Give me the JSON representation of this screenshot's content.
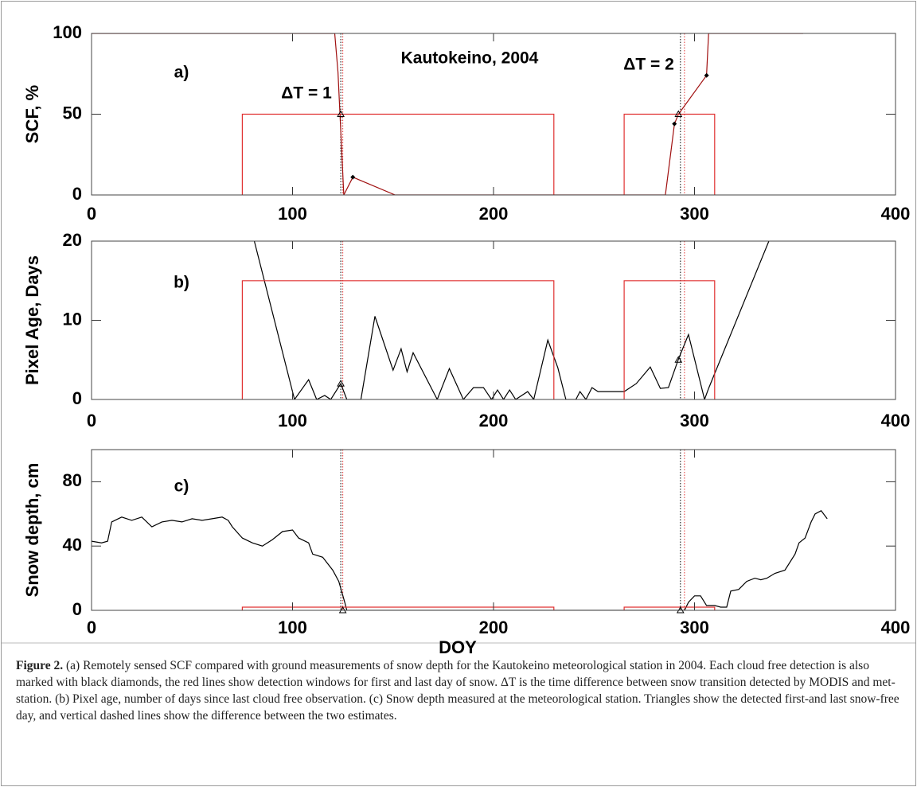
{
  "chart_data": [
    {
      "type": "line",
      "ylabel": "SCF, %",
      "xlim": [
        0,
        400
      ],
      "ylim": [
        0,
        100
      ],
      "xticks": [
        0,
        100,
        200,
        300,
        400
      ],
      "yticks": [
        0,
        50,
        100
      ],
      "annotations": [
        "a)",
        "Kautokeino, 2004",
        "ΔT = 1",
        "ΔT = 2"
      ],
      "series": [
        {
          "color": "#a01010",
          "x": [
            0,
            121,
            122.6,
            125.5,
            130,
            151,
            285.5,
            290,
            292,
            306,
            307,
            354
          ],
          "values": [
            100,
            100,
            76,
            0,
            11,
            0,
            0,
            44,
            50,
            74,
            100,
            100
          ]
        },
        {
          "color": "#e03030",
          "x": [
            75,
            75,
            230,
            230
          ],
          "values": [
            0,
            50,
            50,
            0
          ]
        },
        {
          "color": "#e03030",
          "x": [
            265,
            265,
            310,
            310
          ],
          "values": [
            0,
            50,
            50,
            0
          ]
        }
      ],
      "vlines": [
        {
          "x": 124,
          "color": "#000000"
        },
        {
          "x": 125,
          "color": "#e03030"
        },
        {
          "x": 293,
          "color": "#000000"
        },
        {
          "x": 295,
          "color": "#e03030"
        }
      ],
      "triangles": {
        "x": [
          124,
          292
        ],
        "values": [
          50,
          50
        ]
      },
      "diamonds": {
        "x": [
          130,
          290,
          306
        ],
        "values": [
          11,
          44,
          74
        ]
      }
    },
    {
      "type": "line",
      "ylabel": "Pixel Age, Days",
      "xlim": [
        0,
        400
      ],
      "ylim": [
        0,
        20
      ],
      "xticks": [
        0,
        100,
        200,
        300,
        400
      ],
      "yticks": [
        0,
        10,
        20
      ],
      "annotations": [
        "b)"
      ],
      "series": [
        {
          "color": "#000000",
          "x": [
            81,
            101,
            108,
            112,
            116,
            119,
            124,
            127,
            134,
            141,
            150,
            154,
            157,
            160,
            172,
            178,
            185,
            190,
            195,
            199,
            202,
            205,
            208,
            211,
            217,
            220,
            227,
            232,
            236,
            241,
            243,
            246,
            249,
            252,
            256,
            262,
            265,
            271,
            278,
            283,
            287,
            292,
            297,
            305,
            307,
            337
          ],
          "values": [
            20,
            0,
            2.5,
            0,
            0.5,
            0,
            2,
            0,
            0,
            10.5,
            3.7,
            6.4,
            3.5,
            5.9,
            0,
            3.9,
            0,
            1.5,
            1.5,
            0,
            1.2,
            0,
            1.2,
            0,
            1,
            0,
            7.5,
            4,
            0,
            0,
            1,
            0,
            1.5,
            1,
            1,
            1,
            1,
            2,
            4.1,
            1.4,
            1.5,
            5.1,
            8.2,
            0,
            1.4,
            20
          ]
        },
        {
          "color": "#e03030",
          "x": [
            75,
            75,
            230,
            230
          ],
          "values": [
            0,
            15,
            15,
            0
          ]
        },
        {
          "color": "#e03030",
          "x": [
            265,
            265,
            310,
            310
          ],
          "values": [
            0,
            15,
            15,
            0
          ]
        }
      ],
      "vlines": [
        {
          "x": 124,
          "color": "#000000"
        },
        {
          "x": 125,
          "color": "#e03030"
        },
        {
          "x": 293,
          "color": "#000000"
        },
        {
          "x": 295,
          "color": "#e03030"
        }
      ],
      "triangles": {
        "x": [
          124,
          292
        ],
        "values": [
          2,
          5
        ]
      }
    },
    {
      "type": "line",
      "ylabel": "Snow depth, cm",
      "xlabel": "DOY",
      "xlim": [
        0,
        400
      ],
      "ylim": [
        0,
        100
      ],
      "xticks": [
        0,
        100,
        200,
        300,
        400
      ],
      "yticks": [
        0,
        40,
        80
      ],
      "annotations": [
        "c)"
      ],
      "series": [
        {
          "color": "#000000",
          "x": [
            0,
            5,
            8,
            10,
            15,
            20,
            25,
            30,
            35,
            40,
            45,
            50,
            55,
            60,
            65,
            68,
            70,
            75,
            80,
            85,
            90,
            95,
            100,
            103,
            108,
            110,
            115,
            120,
            123,
            126,
            127,
            295,
            297,
            300,
            303,
            306,
            310,
            313,
            316,
            318,
            322,
            326,
            330,
            333,
            336,
            340,
            345,
            350,
            352,
            355,
            358,
            360,
            363,
            366
          ],
          "values": [
            43,
            42,
            43,
            55,
            58,
            56,
            58,
            52,
            55,
            56,
            55,
            57,
            56,
            57,
            58,
            56,
            52,
            45,
            42,
            40,
            44,
            49,
            50,
            45,
            42,
            35,
            33,
            25,
            18,
            5,
            0,
            0,
            5,
            9,
            9,
            3,
            3,
            2,
            2,
            12,
            13,
            18,
            20,
            19,
            20,
            23,
            25,
            35,
            42,
            45,
            55,
            60,
            62,
            57
          ]
        },
        {
          "color": "#e03030",
          "x": [
            75,
            75,
            230,
            230
          ],
          "values": [
            0,
            2,
            2,
            0
          ]
        },
        {
          "color": "#e03030",
          "x": [
            265,
            265,
            310,
            310
          ],
          "values": [
            0,
            2,
            2,
            0
          ]
        }
      ],
      "vlines": [
        {
          "x": 124,
          "color": "#000000"
        },
        {
          "x": 125,
          "color": "#e03030"
        },
        {
          "x": 293,
          "color": "#000000"
        },
        {
          "x": 295,
          "color": "#e03030"
        }
      ],
      "triangles": {
        "x": [
          125,
          293
        ],
        "values": [
          0,
          0
        ]
      }
    }
  ],
  "caption": {
    "label": "Figure 2.",
    "text": "(a) Remotely sensed SCF compared with ground measurements of snow depth for the Kautokeino meteorological station in 2004. Each cloud free detection is also marked with black diamonds, the red lines show detection windows for first and last day of snow. ΔT is the time difference between snow transition detected by MODIS and met-station. (b) Pixel age, number of days since last cloud free observation. (c) Snow depth measured at the meteorological station. Triangles show the detected first-and last snow-free day, and vertical dashed lines show the difference between the two estimates."
  }
}
